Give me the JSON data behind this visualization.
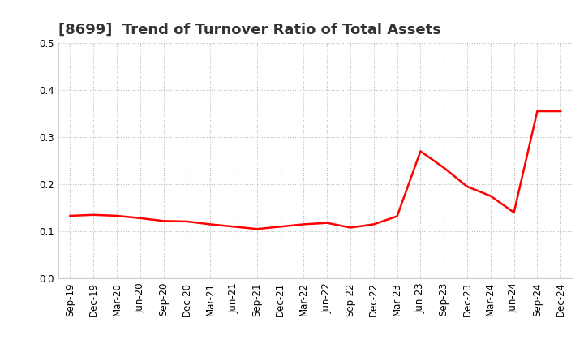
{
  "title": "[8699]  Trend of Turnover Ratio of Total Assets",
  "x_labels": [
    "Sep-19",
    "Dec-19",
    "Mar-20",
    "Jun-20",
    "Sep-20",
    "Dec-20",
    "Mar-21",
    "Jun-21",
    "Sep-21",
    "Dec-21",
    "Mar-22",
    "Jun-22",
    "Sep-22",
    "Dec-22",
    "Mar-23",
    "Jun-23",
    "Sep-23",
    "Dec-23",
    "Mar-24",
    "Jun-24",
    "Sep-24",
    "Dec-24"
  ],
  "y_values": [
    0.133,
    0.135,
    0.133,
    0.128,
    0.122,
    0.121,
    0.115,
    0.11,
    0.105,
    0.11,
    0.115,
    0.118,
    0.108,
    0.115,
    0.132,
    0.27,
    0.235,
    0.195,
    0.175,
    0.14,
    0.355,
    0.355
  ],
  "line_color": "#ff0000",
  "line_width": 1.8,
  "ylim": [
    0.0,
    0.5
  ],
  "yticks": [
    0.0,
    0.1,
    0.2,
    0.3,
    0.4,
    0.5
  ],
  "background_color": "#ffffff",
  "plot_area_color": "#ffffff",
  "grid_color": "#bbbbbb",
  "title_fontsize": 13,
  "tick_fontsize": 8.5
}
